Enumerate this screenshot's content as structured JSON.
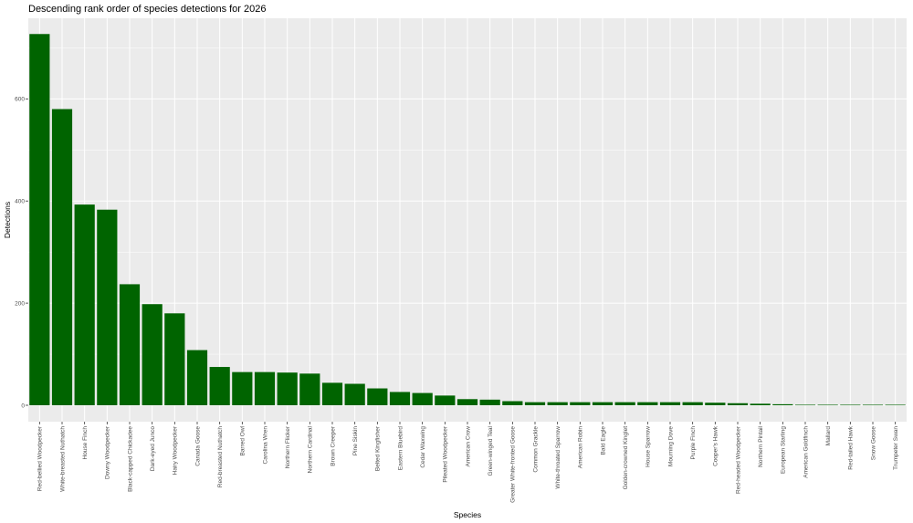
{
  "chart_data": {
    "type": "bar",
    "title": "Descending rank order of species detections for 2026",
    "xlabel": "Species",
    "ylabel": "Detections",
    "ylim": [
      0,
      770
    ],
    "yticks": [
      0,
      200,
      400,
      600
    ],
    "grid": true,
    "legend": "none",
    "categories": [
      "Red-bellied Woodpecker",
      "White-breasted Nuthatch",
      "House Finch",
      "Downy Woodpecker",
      "Black-capped Chickadee",
      "Dark-eyed Junco",
      "Hairy Woodpecker",
      "Canada Goose",
      "Red-breasted Nuthatch",
      "Barred Owl",
      "Carolina Wren",
      "Northern Flicker",
      "Northern Cardinal",
      "Brown Creeper",
      "Pine Siskin",
      "Belted Kingfisher",
      "Eastern Bluebird",
      "Cedar Waxwing",
      "Pileated Woodpecker",
      "American Crow",
      "Green-winged Teal",
      "Greater White-fronted Goose",
      "Common Grackle",
      "White-throated Sparrow",
      "American Robin",
      "Bald Eagle",
      "Golden-crowned Kinglet",
      "House Sparrow",
      "Mourning Dove",
      "Purple Finch",
      "Cooper's Hawk",
      "Red-headed Woodpecker",
      "Northern Pintail",
      "European Starling",
      "American Goldfinch",
      "Mallard",
      "Red-tailed Hawk",
      "Snow Goose",
      "Trumpeter Swan"
    ],
    "values": [
      727,
      580,
      393,
      383,
      237,
      198,
      180,
      108,
      75,
      65,
      65,
      64,
      62,
      44,
      42,
      33,
      26,
      24,
      19,
      12,
      11,
      8,
      6,
      6,
      6,
      6,
      6,
      6,
      6,
      6,
      5,
      4,
      3,
      2,
      1,
      1,
      1,
      1,
      1
    ],
    "bar_color": "#006400",
    "panel_color": "#EBEBEB",
    "grid_color": "#FFFFFF"
  }
}
